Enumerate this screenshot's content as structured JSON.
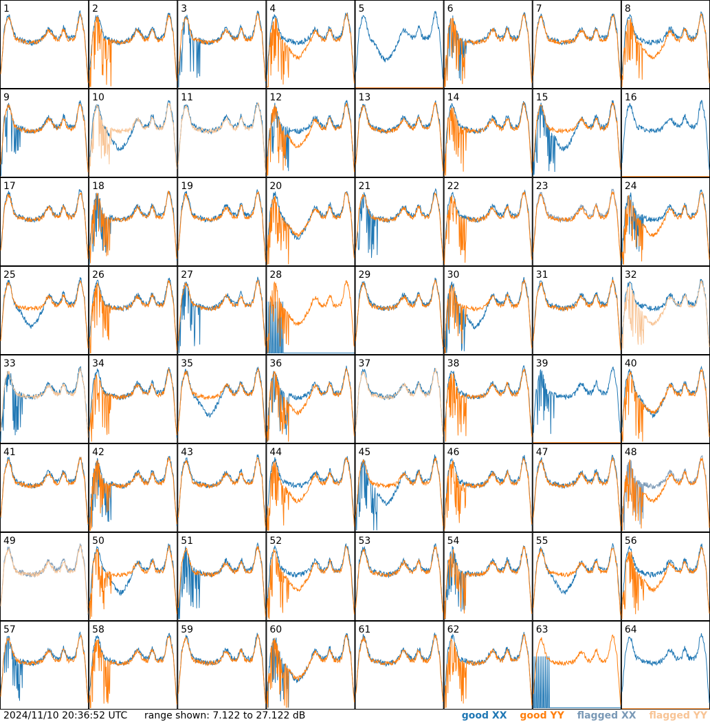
{
  "chart_data": {
    "type": "line",
    "panel_count": 64,
    "grid": {
      "rows": 8,
      "cols": 8
    },
    "panel_labels": [
      "1",
      "2",
      "3",
      "4",
      "5",
      "6",
      "7",
      "8",
      "9",
      "10",
      "11",
      "12",
      "13",
      "14",
      "15",
      "16",
      "17",
      "18",
      "19",
      "20",
      "21",
      "22",
      "23",
      "24",
      "25",
      "26",
      "27",
      "28",
      "29",
      "30",
      "31",
      "32",
      "33",
      "34",
      "35",
      "36",
      "37",
      "38",
      "39",
      "40",
      "41",
      "42",
      "43",
      "44",
      "45",
      "46",
      "47",
      "48",
      "49",
      "50",
      "51",
      "52",
      "53",
      "54",
      "55",
      "56",
      "57",
      "58",
      "59",
      "60",
      "61",
      "62",
      "63",
      "64"
    ],
    "y_range_db": [
      7.122,
      27.122
    ],
    "flagged_xx_tiles": [
      23,
      48,
      49
    ],
    "flagged_yy_tiles": [
      10,
      11,
      32,
      33,
      37,
      49
    ],
    "dead_xx_tiles": [
      28,
      63
    ],
    "dead_yy_tiles": [
      5,
      16,
      39,
      64
    ],
    "series": [
      {
        "name": "good XX",
        "color": "#1f77b4"
      },
      {
        "name": "good YY",
        "color": "#ff7f0e"
      },
      {
        "name": "flagged XX",
        "color": "#7a99b6"
      },
      {
        "name": "flagged YY",
        "color": "#f8c495"
      }
    ]
  },
  "footer": {
    "timestamp": "2024/11/10 20:36:52 UTC",
    "range_text": "range shown: 7.122 to 27.122 dB"
  },
  "legend": {
    "good_xx": "good XX",
    "good_yy": "good YY",
    "flagged_xx": "flagged XX",
    "flagged_yy": "flagged YY"
  },
  "colors": {
    "good_xx": "#1f77b4",
    "good_yy": "#ff7f0e",
    "flagged_xx": "#7a99b6",
    "flagged_yy": "#f8c495",
    "grid_line": "#000000"
  }
}
